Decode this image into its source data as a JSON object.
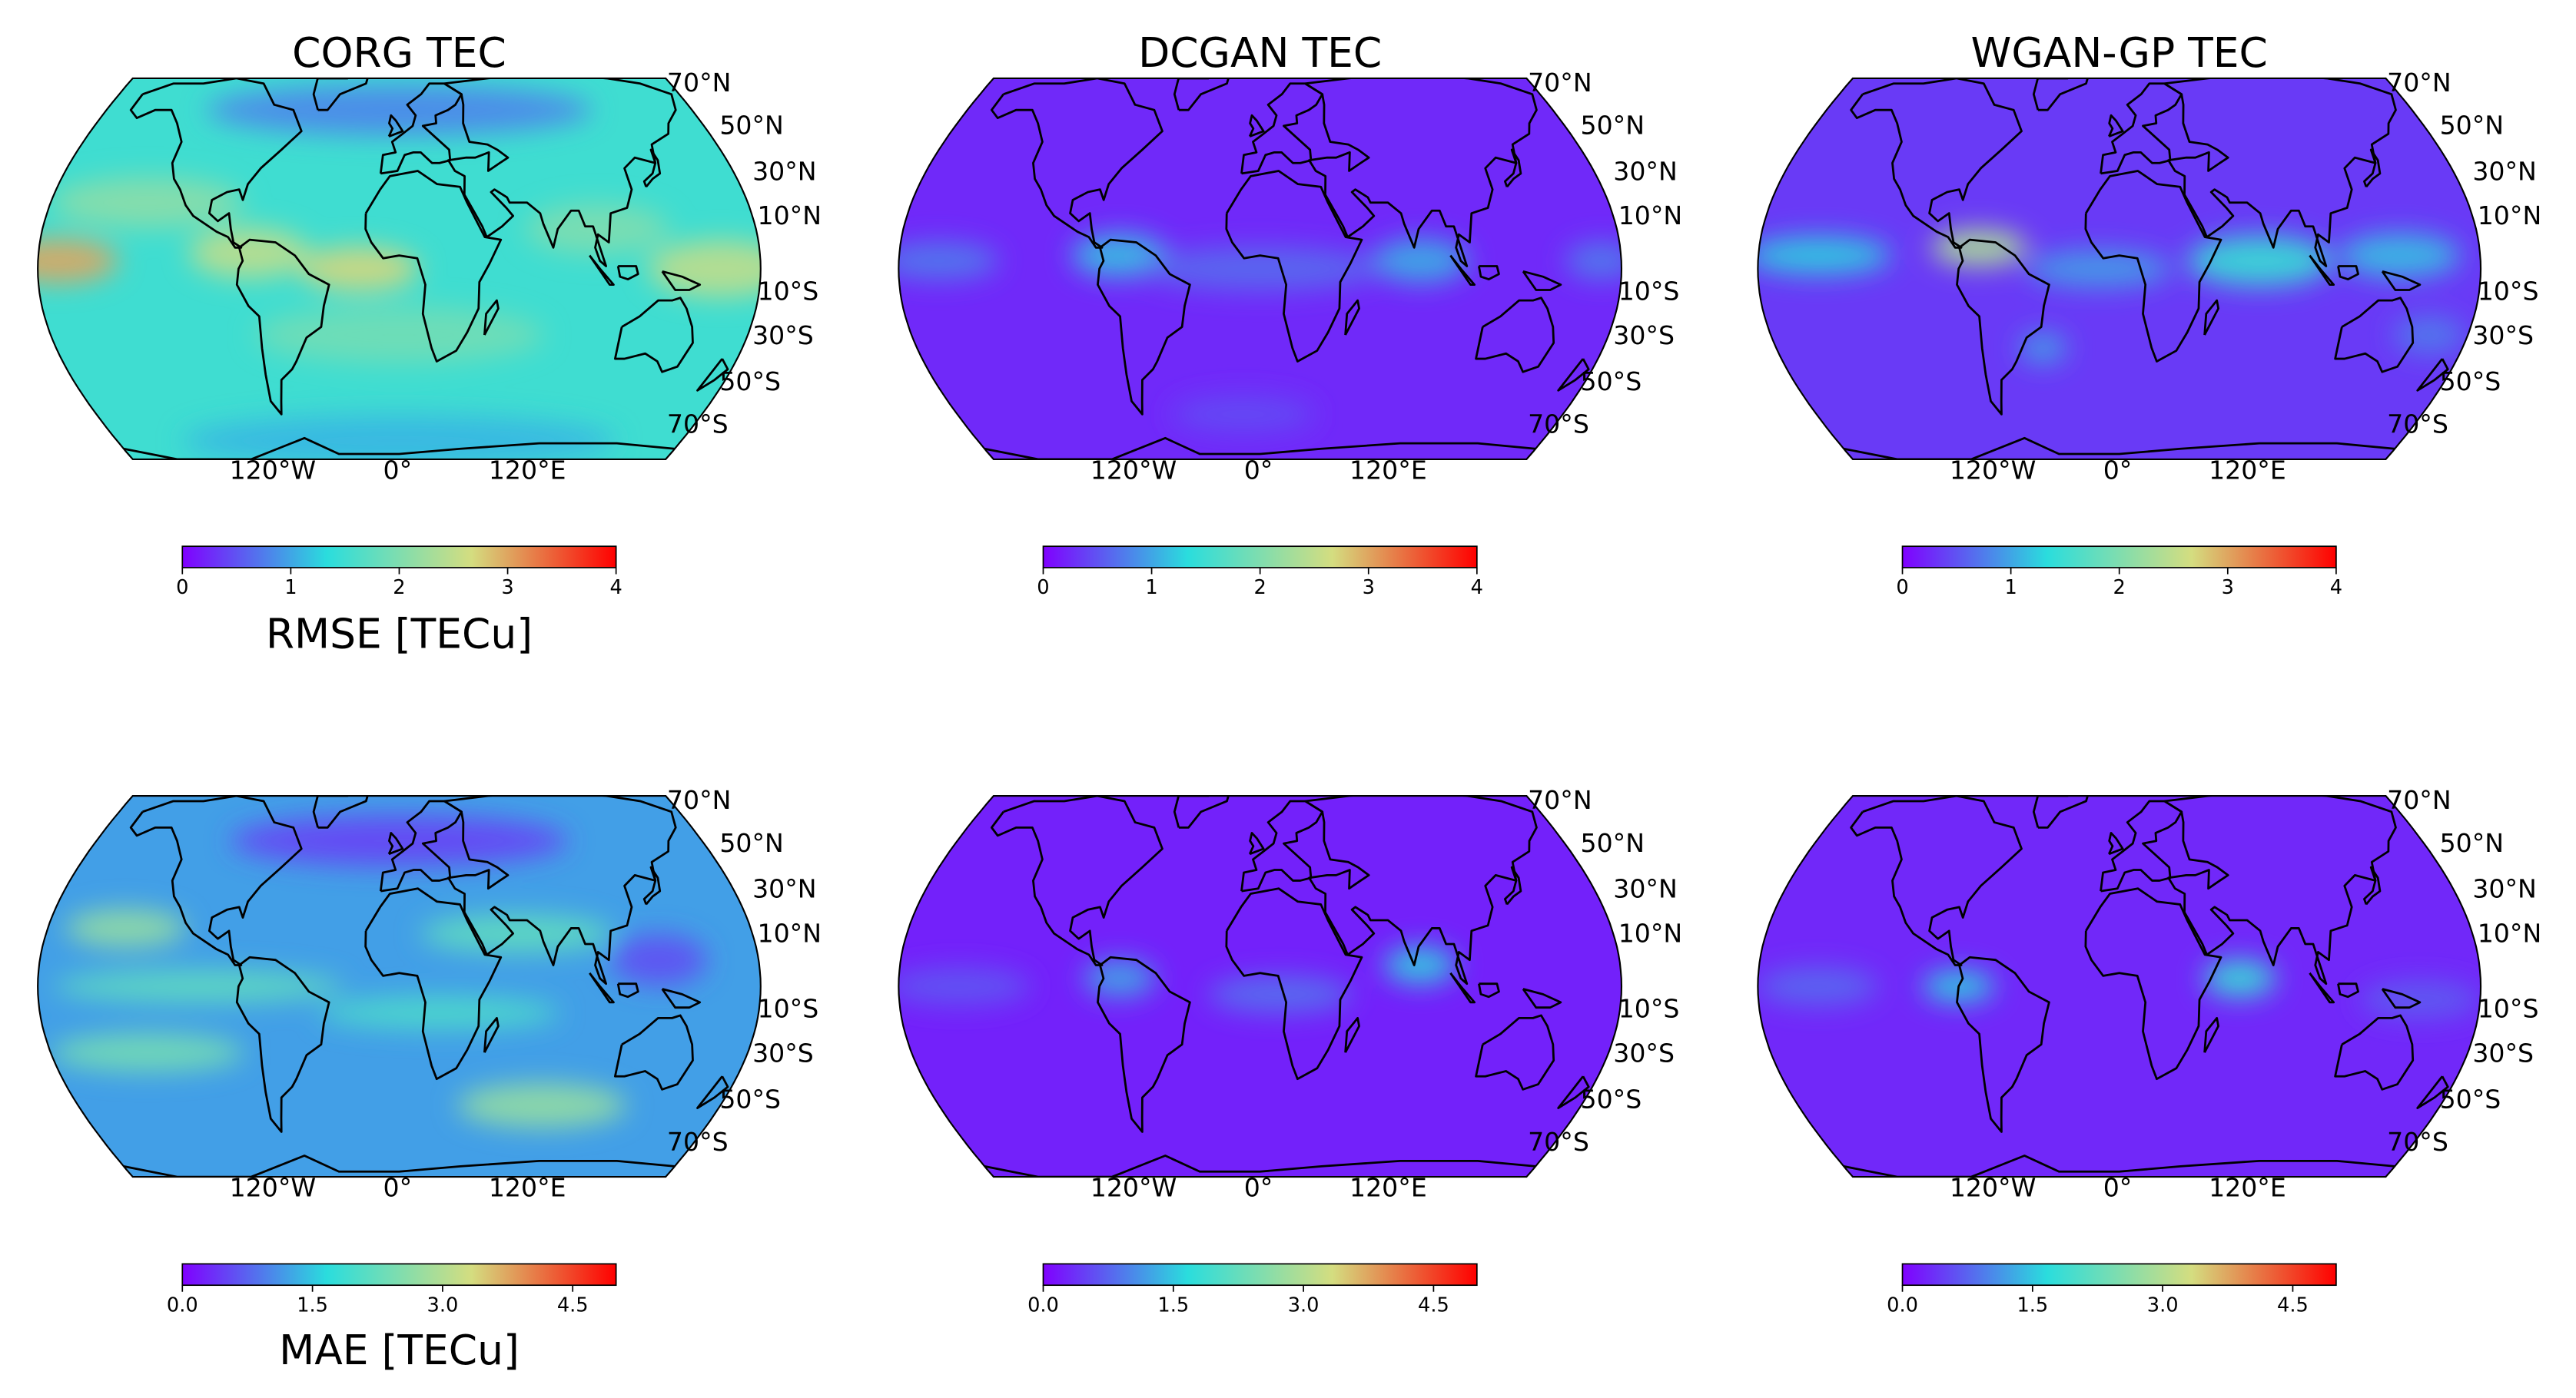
{
  "figure": {
    "panel_titles": [
      "CORG TEC",
      "DCGAN TEC",
      "WGAN-GP TEC"
    ],
    "row_colorbar_labels": [
      "RMSE [TECu]",
      "MAE [TECu]"
    ],
    "lat_tick_labels": [
      "70°N",
      "50°N",
      "30°N",
      "10°N",
      "10°S",
      "30°S",
      "50°S",
      "70°S"
    ],
    "lon_tick_labels": [
      "120°W",
      "0°",
      "120°E"
    ],
    "colormap": "rainbow",
    "colormap_stops": [
      "#8000ff",
      "#2adddd",
      "#d4dd80",
      "#ff0000"
    ],
    "coastline_color": "#000000",
    "projection": "Robinson"
  },
  "chart_data": [
    {
      "type": "heatmap",
      "name": "corg-rmse",
      "title": "CORG TEC",
      "colorbar_label": "RMSE [TECu]",
      "vmin": 0,
      "vmax": 4,
      "colorbar_ticks": [
        "0",
        "1",
        "2",
        "3",
        "4"
      ],
      "base": 1.5,
      "blobs": [
        {
          "lon": -170,
          "lat": 3,
          "slon": 25,
          "slat": 7,
          "value": 1.5
        },
        {
          "lon": -75,
          "lat": 6,
          "slon": 25,
          "slat": 8,
          "value": 1.0
        },
        {
          "lon": -20,
          "lat": 0,
          "slon": 25,
          "slat": 7,
          "value": 1.2
        },
        {
          "lon": 160,
          "lat": 0,
          "slon": 30,
          "slat": 9,
          "value": 1.0
        },
        {
          "lon": -130,
          "lat": 25,
          "slon": 40,
          "slat": 8,
          "value": 0.6
        },
        {
          "lon": 100,
          "lat": 15,
          "slon": 30,
          "slat": 8,
          "value": 0.5
        },
        {
          "lon": 0,
          "lat": -25,
          "slon": 60,
          "slat": 9,
          "value": 0.4
        },
        {
          "lon": 0,
          "lat": 60,
          "slon": 80,
          "slat": 8,
          "value": -0.7
        },
        {
          "lon": 0,
          "lat": -65,
          "slon": 90,
          "slat": 8,
          "value": -0.4
        }
      ]
    },
    {
      "type": "heatmap",
      "name": "dcgan-rmse",
      "title": "DCGAN TEC",
      "colorbar_label": "",
      "vmin": 0,
      "vmax": 4,
      "colorbar_ticks": [
        "0",
        "1",
        "2",
        "3",
        "4"
      ],
      "base": 0.25,
      "blobs": [
        {
          "lon": -70,
          "lat": 5,
          "slon": 20,
          "slat": 7,
          "value": 0.9
        },
        {
          "lon": 80,
          "lat": 3,
          "slon": 20,
          "slat": 7,
          "value": 0.8
        },
        {
          "lon": -160,
          "lat": 3,
          "slon": 25,
          "slat": 6,
          "value": 0.5
        },
        {
          "lon": 170,
          "lat": 3,
          "slon": 15,
          "slat": 6,
          "value": 0.5
        },
        {
          "lon": 0,
          "lat": 0,
          "slon": 50,
          "slat": 7,
          "value": 0.4
        },
        {
          "lon": -10,
          "lat": -55,
          "slon": 30,
          "slat": 6,
          "value": 0.2
        }
      ]
    },
    {
      "type": "heatmap",
      "name": "wgan-rmse",
      "title": "WGAN-GP TEC",
      "colorbar_label": "",
      "vmin": 0,
      "vmax": 4,
      "colorbar_ticks": [
        "0",
        "1",
        "2",
        "3",
        "4"
      ],
      "base": 0.35,
      "blobs": [
        {
          "lon": -70,
          "lat": 8,
          "slon": 20,
          "slat": 6,
          "value": 2.0
        },
        {
          "lon": -150,
          "lat": 5,
          "slon": 30,
          "slat": 6,
          "value": 0.9
        },
        {
          "lon": 70,
          "lat": 3,
          "slon": 30,
          "slat": 8,
          "value": 1.1
        },
        {
          "lon": 140,
          "lat": 5,
          "slon": 25,
          "slat": 7,
          "value": 0.8
        },
        {
          "lon": -10,
          "lat": 0,
          "slon": 30,
          "slat": 6,
          "value": 0.6
        },
        {
          "lon": -40,
          "lat": -30,
          "slon": 10,
          "slat": 5,
          "value": 0.6
        },
        {
          "lon": 160,
          "lat": -25,
          "slon": 15,
          "slat": 6,
          "value": 0.4
        }
      ]
    },
    {
      "type": "heatmap",
      "name": "corg-mae",
      "title": "",
      "colorbar_label": "MAE [TECu]",
      "vmin": 0,
      "vmax": 5,
      "colorbar_ticks": [
        "0.0",
        "1.5",
        "3.0",
        "4.5"
      ],
      "base": 1.2,
      "blobs": [
        {
          "lon": -140,
          "lat": 22,
          "slon": 25,
          "slat": 6,
          "value": 1.5
        },
        {
          "lon": 60,
          "lat": 20,
          "slon": 40,
          "slat": 6,
          "value": 1.0
        },
        {
          "lon": -100,
          "lat": 0,
          "slon": 60,
          "slat": 5,
          "value": 1.0
        },
        {
          "lon": 20,
          "lat": -10,
          "slon": 50,
          "slat": 5,
          "value": 0.8
        },
        {
          "lon": -130,
          "lat": -25,
          "slon": 40,
          "slat": 6,
          "value": 1.2
        },
        {
          "lon": 80,
          "lat": -45,
          "slon": 35,
          "slat": 7,
          "value": 1.5
        },
        {
          "lon": 0,
          "lat": 55,
          "slon": 70,
          "slat": 8,
          "value": -0.7
        },
        {
          "lon": 130,
          "lat": 10,
          "slon": 20,
          "slat": 8,
          "value": -0.6
        }
      ]
    },
    {
      "type": "heatmap",
      "name": "dcgan-mae",
      "title": "",
      "colorbar_label": "",
      "vmin": 0,
      "vmax": 5,
      "colorbar_ticks": [
        "0.0",
        "1.5",
        "3.0",
        "4.5"
      ],
      "base": 0.25,
      "blobs": [
        {
          "lon": -70,
          "lat": 3,
          "slon": 15,
          "slat": 6,
          "value": 1.0
        },
        {
          "lon": 80,
          "lat": 8,
          "slon": 15,
          "slat": 6,
          "value": 1.3
        },
        {
          "lon": 10,
          "lat": -3,
          "slon": 30,
          "slat": 6,
          "value": 0.6
        },
        {
          "lon": -150,
          "lat": 0,
          "slon": 30,
          "slat": 6,
          "value": 0.4
        }
      ]
    },
    {
      "type": "heatmap",
      "name": "wgan-mae",
      "title": "",
      "colorbar_label": "",
      "vmin": 0,
      "vmax": 5,
      "colorbar_ticks": [
        "0.0",
        "1.5",
        "3.0",
        "4.5"
      ],
      "base": 0.3,
      "blobs": [
        {
          "lon": -80,
          "lat": 0,
          "slon": 15,
          "slat": 5,
          "value": 1.3
        },
        {
          "lon": 60,
          "lat": 3,
          "slon": 15,
          "slat": 6,
          "value": 1.5
        },
        {
          "lon": -150,
          "lat": 0,
          "slon": 25,
          "slat": 6,
          "value": 0.5
        },
        {
          "lon": 150,
          "lat": -5,
          "slon": 25,
          "slat": 6,
          "value": 0.4
        }
      ]
    }
  ]
}
